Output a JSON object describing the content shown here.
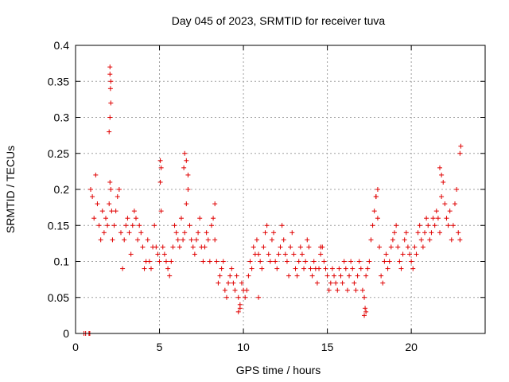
{
  "chart_data": {
    "type": "scatter",
    "title": "Day 045 of 2023, SRMTID for receiver tuva",
    "xlabel": "GPS time / hours",
    "ylabel": "SRMTID / TECUs",
    "xlim": [
      0,
      24.4
    ],
    "ylim": [
      0,
      0.4
    ],
    "xticks": [
      0,
      5,
      10,
      15,
      20
    ],
    "xtick_labels": [
      "0",
      "5",
      "10",
      "15",
      "20"
    ],
    "yticks": [
      0,
      0.05,
      0.1,
      0.15,
      0.2,
      0.25,
      0.3,
      0.35,
      0.4
    ],
    "ytick_labels": [
      "0",
      "0.05",
      "0.1",
      "0.15",
      "0.2",
      "0.25",
      "0.3",
      "0.35",
      "0.4"
    ],
    "grid": true,
    "marker": "+",
    "series": [
      {
        "name": "SRMTID",
        "color": "#e00000",
        "x": [
          0.5,
          0.6,
          0.8,
          0.85,
          0.9,
          1.0,
          1.1,
          1.2,
          1.3,
          1.4,
          1.5,
          1.6,
          1.7,
          1.8,
          1.9,
          2.0,
          2.05,
          2.1,
          2.15,
          2.2,
          2.3,
          2.4,
          2.5,
          2.6,
          2.7,
          2.8,
          2.9,
          3.0,
          3.1,
          3.2,
          3.3,
          3.4,
          3.5,
          3.6,
          3.7,
          3.8,
          3.9,
          4.0,
          4.1,
          4.2,
          4.3,
          4.4,
          4.5,
          4.6,
          4.7,
          4.8,
          4.9,
          5.0,
          5.05,
          5.1,
          5.2,
          5.3,
          5.4,
          5.5,
          5.6,
          5.7,
          5.8,
          5.9,
          6.0,
          6.1,
          6.2,
          6.3,
          6.4,
          6.5,
          6.6,
          6.7,
          6.8,
          6.9,
          7.0,
          7.1,
          7.2,
          7.3,
          7.4,
          7.5,
          7.6,
          7.7,
          7.8,
          7.9,
          8.0,
          8.1,
          8.2,
          8.3,
          8.4,
          8.5,
          8.6,
          8.7,
          8.8,
          8.9,
          9.0,
          9.1,
          9.2,
          9.3,
          9.4,
          9.5,
          9.6,
          9.7,
          9.8,
          9.9,
          10.0,
          10.1,
          10.2,
          10.3,
          10.4,
          10.5,
          10.6,
          10.7,
          10.8,
          10.9,
          11.0,
          11.1,
          11.2,
          11.3,
          11.4,
          11.5,
          11.6,
          11.7,
          11.8,
          11.9,
          12.0,
          12.1,
          12.2,
          12.3,
          12.4,
          12.5,
          12.6,
          12.7,
          12.8,
          12.9,
          13.0,
          13.1,
          13.2,
          13.3,
          13.4,
          13.5,
          13.6,
          13.7,
          13.8,
          13.9,
          14.0,
          14.1,
          14.2,
          14.3,
          14.4,
          14.5,
          14.6,
          14.7,
          14.8,
          14.9,
          15.0,
          15.1,
          15.2,
          15.3,
          15.4,
          15.5,
          15.6,
          15.7,
          15.8,
          15.9,
          16.0,
          16.1,
          16.2,
          16.3,
          16.4,
          16.5,
          16.6,
          16.7,
          16.8,
          16.9,
          17.0,
          17.1,
          17.2,
          17.3,
          17.4,
          17.5,
          17.6,
          17.7,
          17.8,
          17.9,
          18.0,
          18.1,
          18.2,
          18.3,
          18.4,
          18.5,
          18.6,
          18.7,
          18.8,
          18.9,
          19.0,
          19.1,
          19.2,
          19.3,
          19.4,
          19.5,
          19.6,
          19.7,
          19.8,
          19.9,
          20.0,
          20.1,
          20.2,
          20.3,
          20.4,
          20.5,
          20.6,
          20.7,
          20.8,
          20.9,
          21.0,
          21.1,
          21.2,
          21.3,
          21.4,
          21.5,
          21.6,
          21.7,
          21.8,
          21.9,
          22.0,
          22.1,
          22.2,
          22.3,
          22.4,
          22.5,
          22.6,
          22.7,
          22.8,
          22.9,
          2.05,
          2.05,
          2.1,
          2.1,
          2.05,
          2.0,
          2.08,
          6.5,
          6.6,
          6.45,
          6.7,
          5.05,
          5.1,
          22.95,
          22.9,
          17.3,
          17.2,
          17.25,
          9.7,
          9.8,
          17.9,
          18.0,
          14.6,
          21.7,
          21.8,
          8.3,
          10.9
        ],
        "y": [
          0.0,
          0.0,
          0.0,
          0.0,
          0.2,
          0.19,
          0.16,
          0.22,
          0.18,
          0.15,
          0.13,
          0.17,
          0.14,
          0.16,
          0.15,
          0.18,
          0.21,
          0.2,
          0.17,
          0.13,
          0.15,
          0.17,
          0.19,
          0.2,
          0.14,
          0.09,
          0.13,
          0.15,
          0.16,
          0.14,
          0.11,
          0.15,
          0.17,
          0.16,
          0.13,
          0.15,
          0.14,
          0.12,
          0.09,
          0.1,
          0.13,
          0.1,
          0.09,
          0.12,
          0.15,
          0.12,
          0.11,
          0.1,
          0.21,
          0.17,
          0.12,
          0.11,
          0.1,
          0.09,
          0.08,
          0.1,
          0.12,
          0.15,
          0.14,
          0.13,
          0.12,
          0.16,
          0.13,
          0.14,
          0.18,
          0.2,
          0.15,
          0.13,
          0.12,
          0.11,
          0.13,
          0.14,
          0.16,
          0.12,
          0.1,
          0.12,
          0.14,
          0.13,
          0.1,
          0.15,
          0.16,
          0.13,
          0.1,
          0.07,
          0.08,
          0.09,
          0.1,
          0.06,
          0.05,
          0.07,
          0.08,
          0.09,
          0.07,
          0.06,
          0.08,
          0.05,
          0.04,
          0.07,
          0.06,
          0.05,
          0.06,
          0.08,
          0.1,
          0.09,
          0.12,
          0.11,
          0.13,
          0.11,
          0.1,
          0.09,
          0.12,
          0.14,
          0.15,
          0.11,
          0.1,
          0.13,
          0.14,
          0.1,
          0.09,
          0.11,
          0.12,
          0.15,
          0.13,
          0.11,
          0.1,
          0.08,
          0.12,
          0.14,
          0.11,
          0.09,
          0.08,
          0.1,
          0.12,
          0.11,
          0.09,
          0.1,
          0.13,
          0.12,
          0.09,
          0.08,
          0.1,
          0.09,
          0.07,
          0.09,
          0.11,
          0.12,
          0.1,
          0.09,
          0.08,
          0.06,
          0.07,
          0.09,
          0.08,
          0.07,
          0.06,
          0.09,
          0.08,
          0.07,
          0.1,
          0.09,
          0.06,
          0.08,
          0.1,
          0.09,
          0.07,
          0.06,
          0.08,
          0.1,
          0.09,
          0.06,
          0.05,
          0.08,
          0.09,
          0.1,
          0.13,
          0.15,
          0.17,
          0.19,
          0.16,
          0.12,
          0.08,
          0.07,
          0.1,
          0.11,
          0.09,
          0.1,
          0.12,
          0.13,
          0.14,
          0.15,
          0.12,
          0.1,
          0.09,
          0.11,
          0.13,
          0.14,
          0.12,
          0.11,
          0.1,
          0.09,
          0.12,
          0.11,
          0.14,
          0.15,
          0.13,
          0.12,
          0.14,
          0.16,
          0.15,
          0.13,
          0.14,
          0.16,
          0.15,
          0.17,
          0.16,
          0.14,
          0.19,
          0.21,
          0.18,
          0.16,
          0.15,
          0.17,
          0.13,
          0.15,
          0.18,
          0.2,
          0.14,
          0.13,
          0.37,
          0.36,
          0.35,
          0.32,
          0.3,
          0.28,
          0.34,
          0.25,
          0.24,
          0.23,
          0.22,
          0.24,
          0.23,
          0.26,
          0.25,
          0.03,
          0.025,
          0.035,
          0.03,
          0.035,
          0.19,
          0.2,
          0.12,
          0.23,
          0.22,
          0.18,
          0.05
        ]
      }
    ]
  }
}
